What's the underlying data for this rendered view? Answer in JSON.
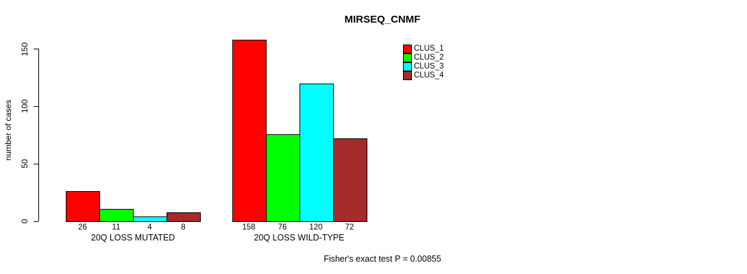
{
  "chart_data": {
    "type": "bar",
    "title": "MIRSEQ_CNMF",
    "ylabel": "number of cases",
    "xlabel": "",
    "categories": [
      "20Q LOSS MUTATED",
      "20Q LOSS WILD-TYPE"
    ],
    "series": [
      {
        "name": "CLUS_1",
        "color": "#ff0000",
        "values": [
          26,
          158
        ]
      },
      {
        "name": "CLUS_2",
        "color": "#00ff00",
        "values": [
          11,
          76
        ]
      },
      {
        "name": "CLUS_3",
        "color": "#00ffff",
        "values": [
          4,
          120
        ]
      },
      {
        "name": "CLUS_4",
        "color": "#a52a2a",
        "values": [
          8,
          72
        ]
      }
    ],
    "ylim": [
      0,
      150
    ],
    "yticks": [
      0,
      50,
      100,
      150
    ],
    "bar_value_labels": true,
    "legend_position": "top-right-inside",
    "grid": false
  },
  "annotation": {
    "text": "Fisher's exact test P = 0.00855"
  }
}
